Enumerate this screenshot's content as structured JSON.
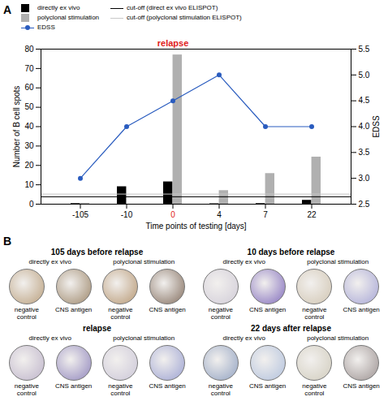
{
  "chart_data": {
    "type": "bar",
    "label": "A",
    "categories": [
      "-105",
      "-10",
      "0",
      "4",
      "7",
      "22"
    ],
    "x_label": "Time points of testing [days]",
    "y_label": "Number of B cell spots",
    "y2_label": "EDSS",
    "ylim": [
      0,
      80
    ],
    "yticks": [
      0,
      10,
      20,
      30,
      40,
      50,
      60,
      70,
      80
    ],
    "y2lim": [
      2.5,
      5.5
    ],
    "y2ticks": [
      2.5,
      {
        "value": 3,
        "label": "3.0"
      },
      3.5,
      {
        "value": 4,
        "label": "4.0"
      },
      4.5,
      {
        "value": 5,
        "label": "5.0"
      },
      5.5
    ],
    "legend": "top",
    "series": [
      {
        "name": "directly ex vivo",
        "type": "bar",
        "color": "#000000",
        "values": [
          0.3,
          9,
          11.5,
          0.2,
          0.3,
          2
        ]
      },
      {
        "name": "polyclonal stimulation",
        "type": "bar",
        "color": "#b0b0b0",
        "values": [
          0.5,
          0,
          77,
          7,
          15.8,
          24.3
        ]
      },
      {
        "name": "EDSS",
        "type": "line",
        "color": "#2a5cbf",
        "marker": "circle",
        "axis": "y2",
        "values": [
          3,
          4,
          4.5,
          5,
          4,
          4
        ]
      }
    ],
    "cutoffs": [
      {
        "name": "cut-off (direct ex vivo ELISPOT)",
        "color": "#000000",
        "value": 3.8
      },
      {
        "name": "cut-off (polyclonal stimulation ELISPOT)",
        "color": "#c8c8c8",
        "value": 5.2
      }
    ],
    "annotations": [
      {
        "text": "relapse",
        "x": "0",
        "color": "#e0201b"
      }
    ]
  },
  "panel_b": {
    "label": "B",
    "groups": [
      {
        "title": "105 days before relapse",
        "conditions": [
          {
            "name": "directly ex vivo",
            "wells": [
              "negative control",
              "CNS antigen"
            ]
          },
          {
            "name": "polyclonal stimulation",
            "wells": [
              "negative control",
              "CNS antigen"
            ]
          }
        ]
      },
      {
        "title": "10 days before relapse",
        "conditions": [
          {
            "name": "directly ex vivo",
            "wells": [
              "negative control",
              "CNS antigen"
            ]
          },
          {
            "name": "polyclonal stimulation",
            "wells": [
              "negative control",
              "CNS antigen"
            ]
          }
        ]
      },
      {
        "title": "relapse",
        "conditions": [
          {
            "name": "directly ex vivo",
            "wells": [
              "negative control",
              "CNS antigen"
            ]
          },
          {
            "name": "polyclonal stimulation",
            "wells": [
              "negative control",
              "CNS antigen"
            ]
          }
        ]
      },
      {
        "title": "22 days after relapse",
        "conditions": [
          {
            "name": "directly ex vivo",
            "wells": [
              "negative control",
              "CNS antigen"
            ]
          },
          {
            "name": "polyclonal stimulation",
            "wells": [
              "negative control",
              "CNS antigen"
            ]
          }
        ]
      }
    ]
  }
}
